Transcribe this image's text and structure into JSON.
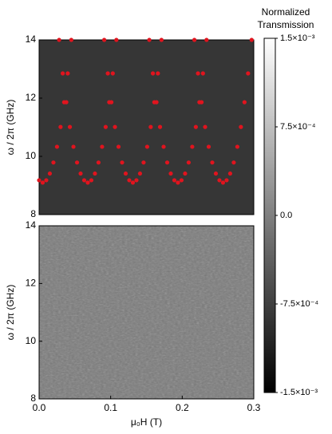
{
  "chart_data": [
    {
      "type": "heatmap",
      "ylabel": "ω / 2π (GHz)",
      "xlim": [
        0,
        0.3
      ],
      "ylim": [
        8,
        14
      ],
      "yticks": [
        8,
        10,
        12,
        14
      ],
      "points": {
        "color": "#e0141e",
        "x": [
          0.0,
          0.005,
          0.01,
          0.015,
          0.02,
          0.025,
          0.03,
          0.035,
          0.04,
          0.045,
          0.028,
          0.033,
          0.038,
          0.043,
          0.048,
          0.053,
          0.058,
          0.063,
          0.068,
          0.073,
          0.078,
          0.083,
          0.088,
          0.093,
          0.098,
          0.103,
          0.108,
          0.091,
          0.096,
          0.101,
          0.106,
          0.111,
          0.116,
          0.121,
          0.126,
          0.131,
          0.136,
          0.141,
          0.146,
          0.151,
          0.156,
          0.161,
          0.166,
          0.171,
          0.154,
          0.159,
          0.164,
          0.169,
          0.174,
          0.179,
          0.184,
          0.189,
          0.194,
          0.199,
          0.204,
          0.209,
          0.214,
          0.219,
          0.224,
          0.229,
          0.234,
          0.217,
          0.222,
          0.227,
          0.232,
          0.237,
          0.242,
          0.247,
          0.252,
          0.257,
          0.262,
          0.267,
          0.272,
          0.277,
          0.282,
          0.287,
          0.292,
          0.297
        ],
        "y": [
          9.18,
          9.1,
          9.18,
          9.41,
          9.79,
          10.33,
          11.01,
          11.86,
          12.85,
          14.0,
          14.0,
          12.85,
          11.86,
          11.01,
          10.33,
          9.79,
          9.41,
          9.18,
          9.1,
          9.18,
          9.41,
          9.79,
          10.33,
          11.01,
          11.86,
          12.85,
          14.0,
          14.0,
          12.85,
          11.86,
          11.01,
          10.33,
          9.79,
          9.41,
          9.18,
          9.1,
          9.18,
          9.41,
          9.79,
          10.33,
          11.01,
          11.86,
          12.85,
          14.0,
          14.0,
          12.85,
          11.86,
          11.01,
          10.33,
          9.79,
          9.41,
          9.18,
          9.1,
          9.18,
          9.41,
          9.79,
          10.33,
          11.01,
          11.86,
          12.85,
          14.0,
          14.0,
          12.85,
          11.86,
          11.01,
          10.33,
          9.79,
          9.41,
          9.18,
          9.1,
          9.18,
          9.41,
          9.79,
          10.33,
          11.01,
          11.86,
          12.85,
          14.0
        ]
      }
    },
    {
      "type": "heatmap",
      "ylabel": "ω / 2π (GHz)",
      "xlabel": "μ₀H (T)",
      "xlim": [
        0,
        0.3
      ],
      "ylim": [
        8,
        14
      ],
      "yticks": [
        8,
        10,
        12,
        14
      ],
      "xticks": [
        {
          "value": 0,
          "label": "0.0"
        },
        0.1,
        0.2,
        0.3
      ]
    },
    {
      "type": "colorbar",
      "title": [
        "Normalized",
        "Transmission"
      ],
      "lim": [
        -0.0015,
        0.0015
      ],
      "ticks": [
        {
          "value": 0.0015,
          "label": "1.5×10⁻³"
        },
        {
          "value": 0.00075,
          "label": "7.5×10⁻⁴"
        },
        {
          "value": 0,
          "label": "0.0"
        },
        {
          "value": -0.00075,
          "label": "-7.5×10⁻⁴"
        },
        {
          "value": -0.0015,
          "label": "-1.5×10⁻³"
        }
      ]
    }
  ]
}
